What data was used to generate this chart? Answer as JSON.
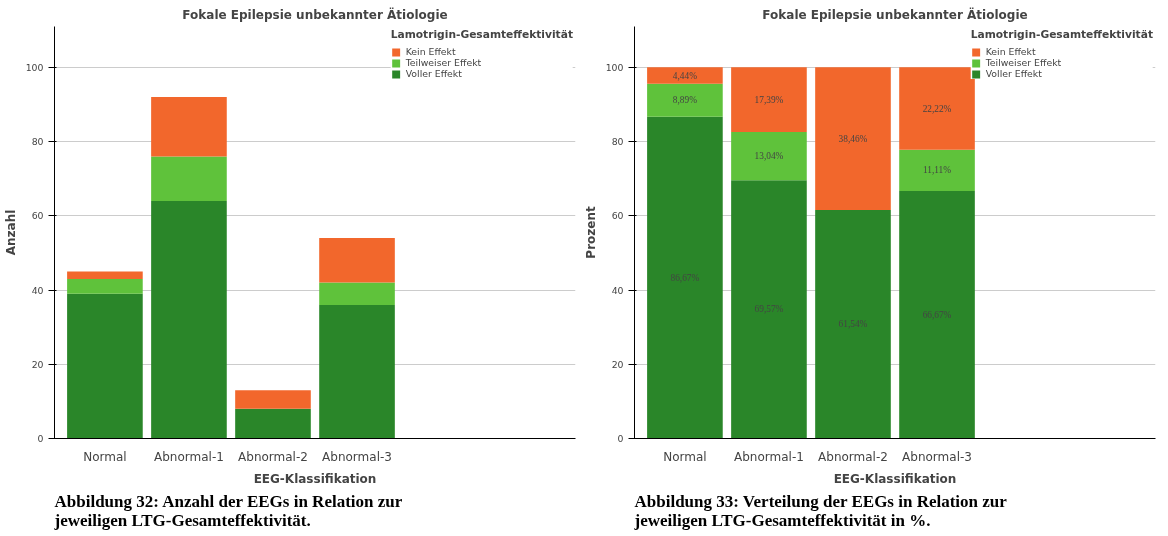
{
  "chart_data": [
    {
      "type": "bar",
      "stacked": true,
      "title": "Fokale Epilepsie unbekannter Ätiologie",
      "xlabel": "EEG-Klassifikation",
      "ylabel": "Anzahl",
      "legend_title": "Lamotrigin-Gesamteffektivität",
      "legend": "top right",
      "grid": "y",
      "categories": [
        "Normal",
        "Abnormal-1",
        "Abnormal-2",
        "Abnormal-3"
      ],
      "ylim": [
        0,
        111
      ],
      "yticks": [
        0,
        20,
        40,
        60,
        80,
        100
      ],
      "series": [
        {
          "name": "Voller Effekt",
          "color": "#2a8629",
          "values": [
            39,
            64,
            8,
            36
          ]
        },
        {
          "name": "Teilweiser Effekt",
          "color": "#5fc23b",
          "values": [
            4,
            12,
            0,
            6
          ]
        },
        {
          "name": "Kein Effekt",
          "color": "#f2672c",
          "values": [
            2,
            16,
            5,
            12
          ]
        }
      ],
      "annotations": [
        "Abbildung 32: Anzahl der EEGs in Relation zur jeweiligen LTG-Gesamteffektivität."
      ]
    },
    {
      "type": "bar",
      "stacked": true,
      "title": "Fokale Epilepsie unbekannter Ätiologie",
      "xlabel": "EEG-Klassifikation",
      "ylabel": "Prozent",
      "legend_title": "Lamotrigin-Gesamteffektivität",
      "legend": "top right",
      "grid": "y",
      "categories": [
        "Normal",
        "Abnormal-1",
        "Abnormal-2",
        "Abnormal-3"
      ],
      "ylim": [
        0,
        111
      ],
      "yticks": [
        0,
        20,
        40,
        60,
        80,
        100
      ],
      "series": [
        {
          "name": "Voller Effekt",
          "color": "#2a8629",
          "values": [
            86.67,
            69.57,
            61.54,
            66.67
          ],
          "value_labels": [
            "86,67%",
            "69,57%",
            "61,54%",
            "66,67%"
          ]
        },
        {
          "name": "Teilweiser Effekt",
          "color": "#5fc23b",
          "values": [
            8.89,
            13.04,
            0,
            11.11
          ],
          "value_labels": [
            "8,89%",
            "13,04%",
            null,
            "11,11%"
          ]
        },
        {
          "name": "Kein Effekt",
          "color": "#f2672c",
          "values": [
            4.44,
            17.39,
            38.46,
            22.22
          ],
          "value_labels": [
            "4,44%",
            "17,39%",
            "38,46%",
            "22,22%"
          ]
        }
      ],
      "annotations": [
        "Abbildung 33: Verteilung der EEGs in Relation zur jeweiligen LTG-Gesamteffektivität in %."
      ]
    }
  ]
}
